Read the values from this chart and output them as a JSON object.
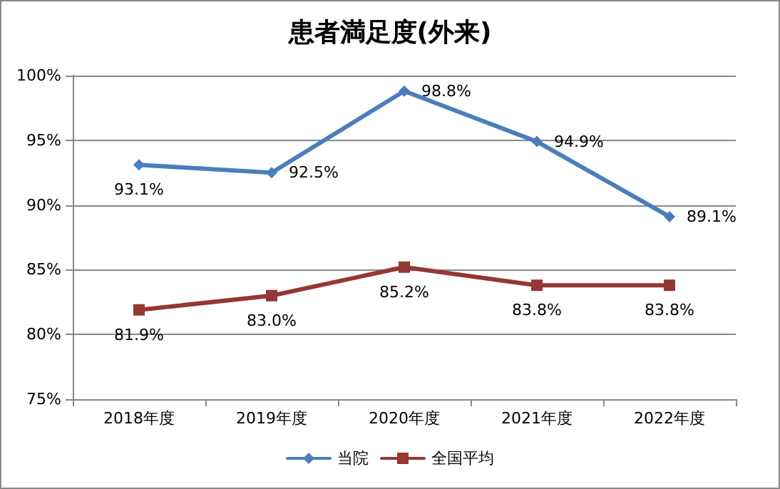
{
  "chart_data": {
    "type": "line",
    "title": "患者満足度(外来)",
    "categories": [
      "2018年度",
      "2019年度",
      "2020年度",
      "2021年度",
      "2022年度"
    ],
    "series": [
      {
        "name": "当院",
        "color": "#4a7ebb",
        "marker": "diamond",
        "values": [
          93.1,
          92.5,
          98.8,
          94.9,
          89.1
        ],
        "value_labels": [
          "93.1%",
          "92.5%",
          "98.8%",
          "94.9%",
          "89.1%"
        ]
      },
      {
        "name": "全国平均",
        "color": "#953735",
        "marker": "square",
        "values": [
          81.9,
          83.0,
          85.2,
          83.8,
          83.8
        ],
        "value_labels": [
          "81.9%",
          "83.0%",
          "85.2%",
          "83.8%",
          "83.8%"
        ]
      }
    ],
    "ylim": [
      75,
      100
    ],
    "yticks": [
      {
        "value": 75,
        "label": "75%"
      },
      {
        "value": 80,
        "label": "80%"
      },
      {
        "value": 85,
        "label": "85%"
      },
      {
        "value": 90,
        "label": "90%"
      },
      {
        "value": 95,
        "label": "95%"
      },
      {
        "value": 100,
        "label": "100%"
      }
    ],
    "grid": "y",
    "legend": "bottom",
    "line_style": "solid"
  }
}
